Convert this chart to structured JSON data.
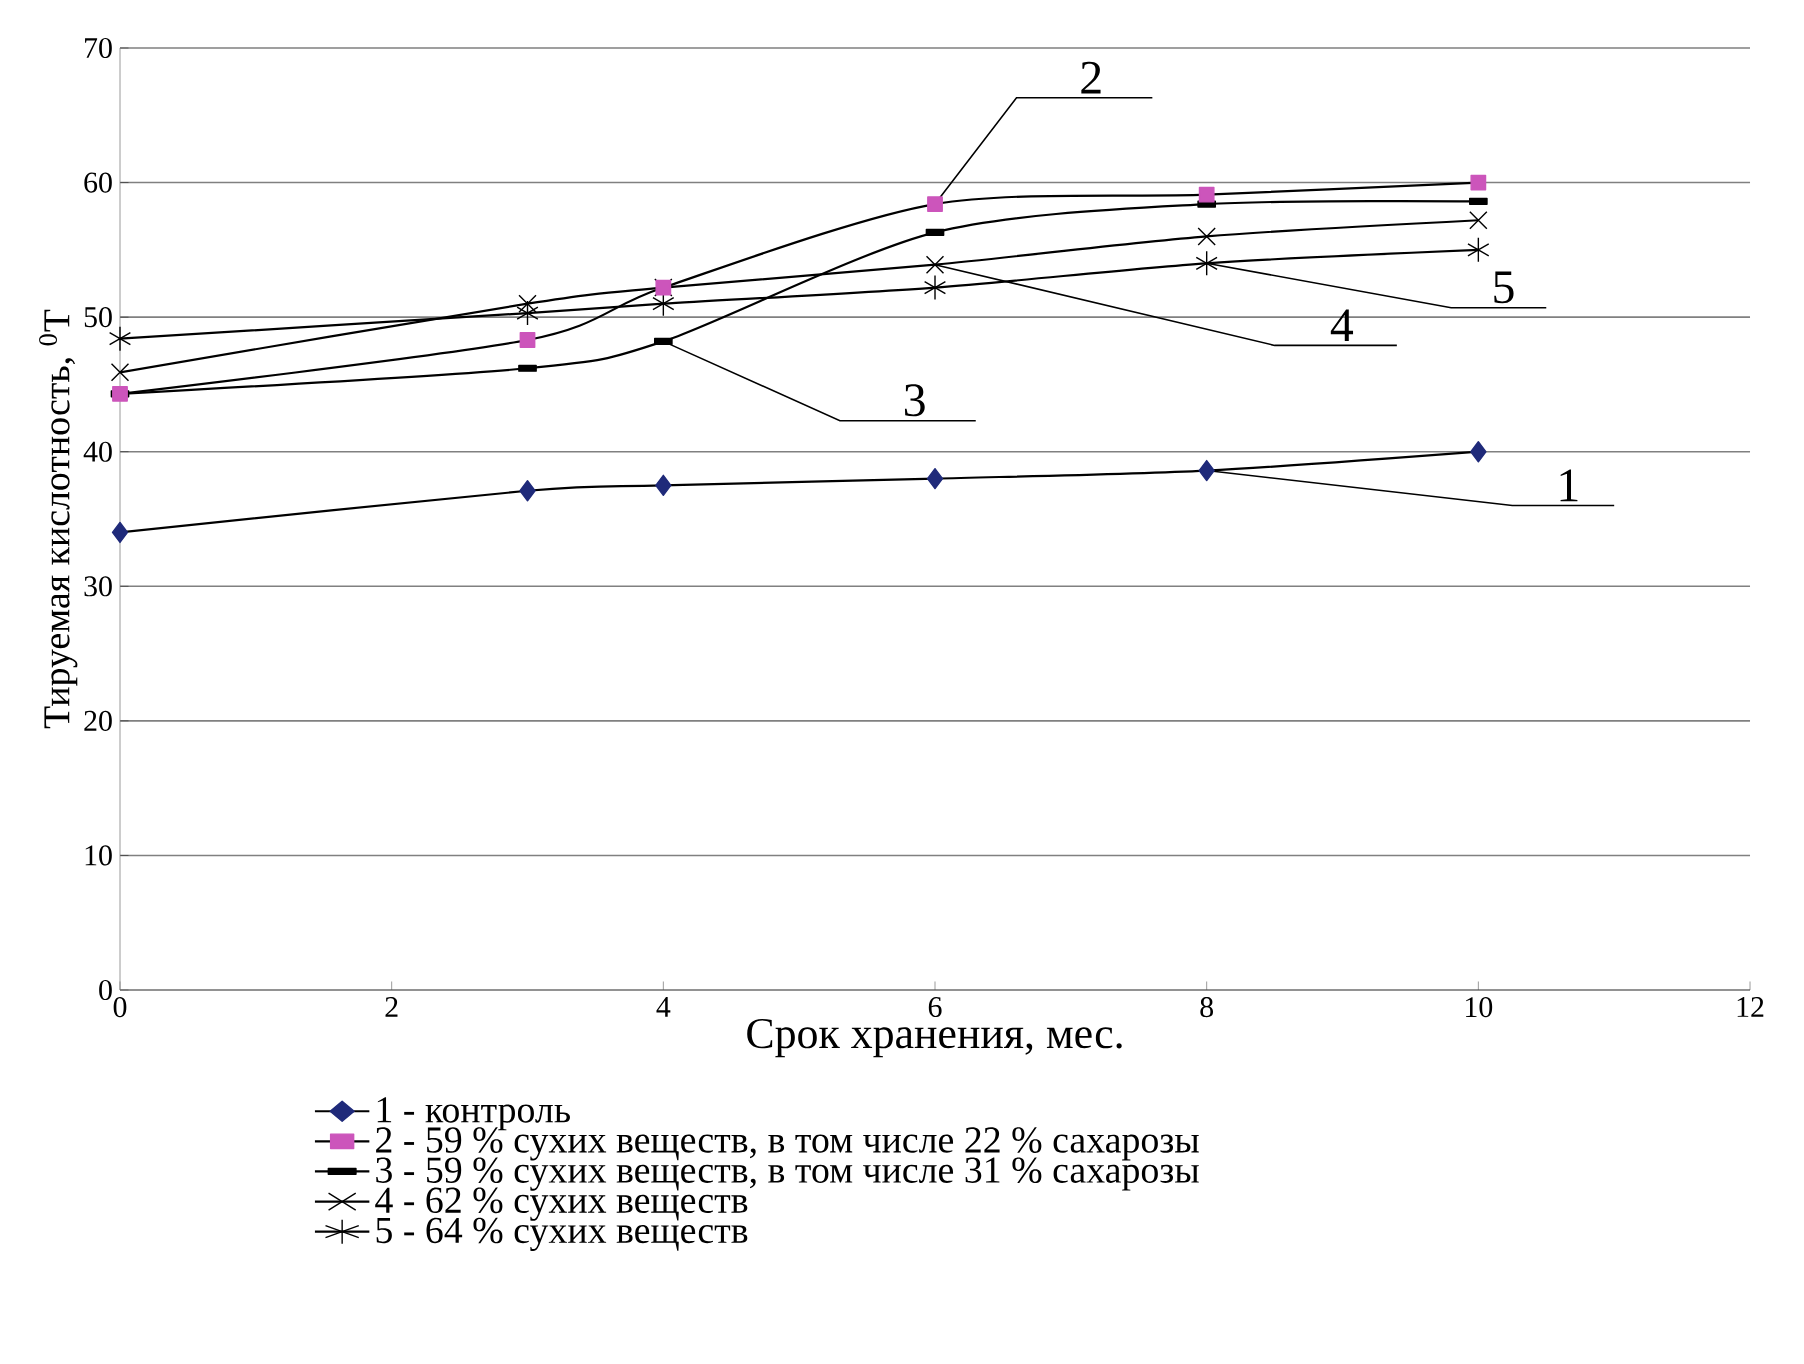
{
  "chart_data": {
    "type": "line",
    "xlabel": "Срок хранения, мес.",
    "ylabel": "Тируемая кислотность, $^{0}$Т",
    "xlim": [
      0,
      12
    ],
    "xticks": [
      0,
      2,
      4,
      6,
      8,
      10,
      12
    ],
    "ylim": [
      0,
      70
    ],
    "yticks": [
      0,
      10,
      20,
      30,
      40,
      50,
      60,
      70
    ],
    "grid": "y",
    "legend": "bottom",
    "series": [
      {
        "name": "1 -  контроль",
        "color": "#1f2a7a",
        "marker": "diamond",
        "x": [
          0,
          3,
          4,
          6,
          8,
          10
        ],
        "values": [
          34.0,
          37.1,
          37.5,
          38.0,
          38.6,
          40.0
        ]
      },
      {
        "name": "2 - 59 % сухих веществ, в том числе 22 % сахарозы",
        "color": "#cc55bb",
        "marker": "square",
        "x": [
          0,
          3,
          4,
          6,
          8,
          10
        ],
        "values": [
          44.3,
          48.3,
          52.2,
          58.4,
          59.1,
          60.0
        ]
      },
      {
        "name": "3 - 59 % сухих веществ, в том числе 31 % сахарозы",
        "color": "#000000",
        "marker": "square",
        "x": [
          0,
          3,
          4,
          6,
          8,
          10
        ],
        "values": [
          44.3,
          46.2,
          48.2,
          56.3,
          58.4,
          58.6
        ]
      },
      {
        "name": "4 - 62 % сухих веществ",
        "color": "#000000",
        "marker": "cross",
        "x": [
          0,
          3,
          4,
          6,
          8,
          10
        ],
        "values": [
          45.9,
          51.0,
          52.2,
          53.9,
          56.0,
          57.2
        ]
      },
      {
        "name": "5 - 64 % сухих веществ",
        "color": "#000000",
        "marker": "cross",
        "x": [
          0,
          3,
          4,
          6,
          8,
          10
        ],
        "values": [
          48.4,
          50.3,
          51.0,
          52.2,
          54.0,
          55.0
        ]
      }
    ],
    "annotations": [
      {
        "text": "1",
        "x": 8,
        "y": 38.6
      },
      {
        "text": "2",
        "x": 6,
        "y": 58.4
      },
      {
        "text": "3",
        "x": 4,
        "y": 48.2
      },
      {
        "text": "4",
        "x": 6,
        "y": 53.9
      },
      {
        "text": "5",
        "x": 8,
        "y": 54.0
      }
    ]
  }
}
